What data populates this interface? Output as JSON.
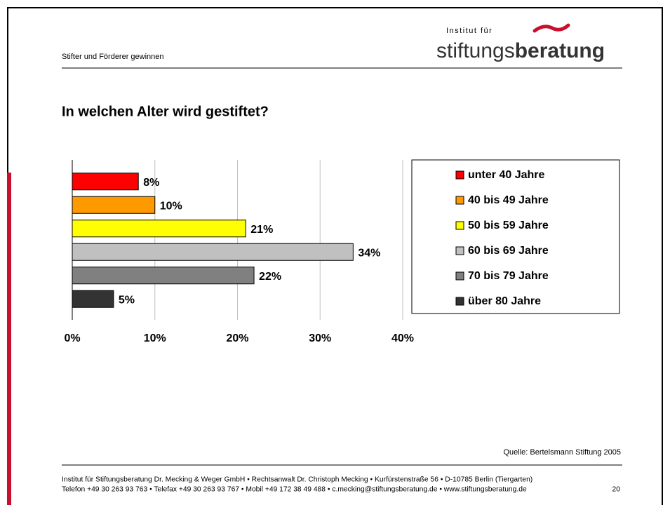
{
  "header": {
    "subtitle": "Stifter und Förderer gewinnen",
    "logo_small": "Institut für",
    "logo_light": "stiftungs",
    "logo_bold": "beratung"
  },
  "chart_data": {
    "type": "bar",
    "orientation": "horizontal",
    "title": "In welchen Alter wird gestiftet?",
    "categories": [
      "unter 40 Jahre",
      "40 bis 49 Jahre",
      "50 bis 59 Jahre",
      "60 bis 69 Jahre",
      "70 bis 79 Jahre",
      "über 80 Jahre"
    ],
    "values": [
      8,
      10,
      21,
      34,
      22,
      5
    ],
    "value_labels": [
      "8%",
      "10%",
      "21%",
      "34%",
      "22%",
      "5%"
    ],
    "colors": [
      "#ff0000",
      "#ff9900",
      "#ffff00",
      "#c0c0c0",
      "#808080",
      "#333333"
    ],
    "xlim": [
      0,
      40
    ],
    "xticks": [
      {
        "value": 0,
        "label": "0%"
      },
      {
        "value": 10,
        "label": "10%"
      },
      {
        "value": 20,
        "label": "20%"
      },
      {
        "value": 30,
        "label": "30%"
      },
      {
        "value": 40,
        "label": "40%"
      }
    ],
    "grid": true,
    "legend": "right"
  },
  "source": "Quelle: Bertelsmann Stiftung 2005",
  "footer": {
    "line1": "Institut für Stiftungsberatung Dr. Mecking & Weger GmbH • Rechtsanwalt Dr. Christoph Mecking • Kurfürstenstraße 56 • D-10785 Berlin (Tiergarten)",
    "line2": "Telefon +49 30 263 93 763 • Telefax +49 30 263 93 767 • Mobil +49 172 38 49 488 • c.mecking@stiftungsberatung.de • www.stiftungsberatung.de",
    "page": "20"
  }
}
